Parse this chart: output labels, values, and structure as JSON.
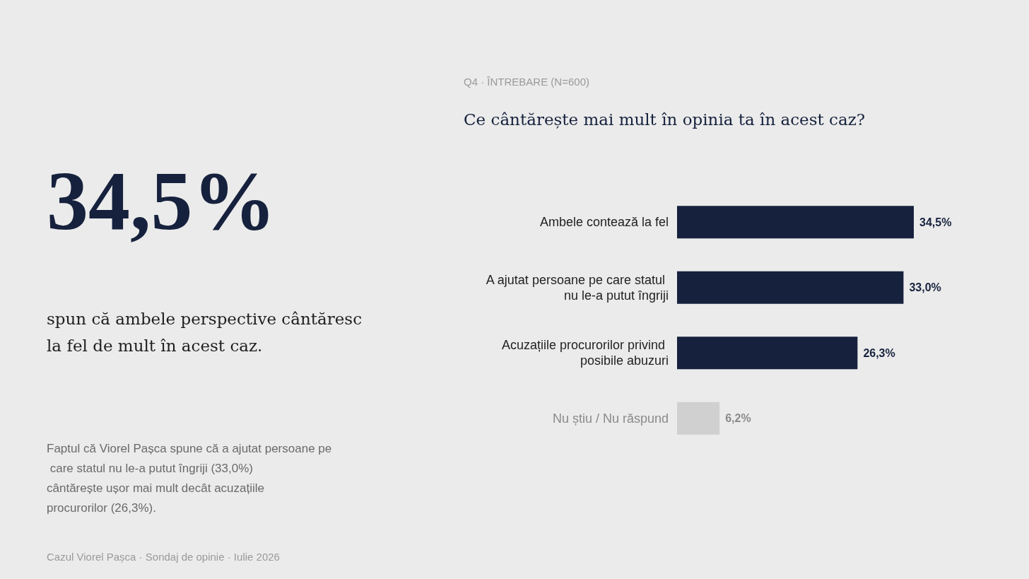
{
  "chart_data": {
    "type": "bar",
    "orientation": "horizontal",
    "subtitle": "Q4 · ÎNTREBARE (N=600)",
    "title": "Ce cântărește mai mult în opinia ta în acest caz?",
    "categories": [
      "Ambele contează la fel",
      "A ajutat persoane pe care statul nu le-a putut îngriji",
      "Acuzațiile procurorilor privind posibile abuzuri",
      "Nu știu / Nu răspund"
    ],
    "values": [
      34.5,
      33.0,
      26.3,
      6.2
    ],
    "colors": [
      "#16213d",
      "#16213d",
      "#16213d",
      "#d0d0d0"
    ],
    "value_labels": [
      "34,5%",
      "33,0%",
      "26,3%",
      "6,2%"
    ],
    "annotations": [
      "34,5%",
      "spun că ambele perspective cântăresc la fel de mult în acest caz.",
      "Faptul că Viorel Pașca spune că a ajutat persoane pe care statul nu le-a putut îngriji (33,0%) cântărește ușor mai mult decât acuzațiile procurorilor (26,3%).",
      "Cazul Viorel Pașca · Sondaj de opinie · Iulie 2026"
    ]
  }
}
